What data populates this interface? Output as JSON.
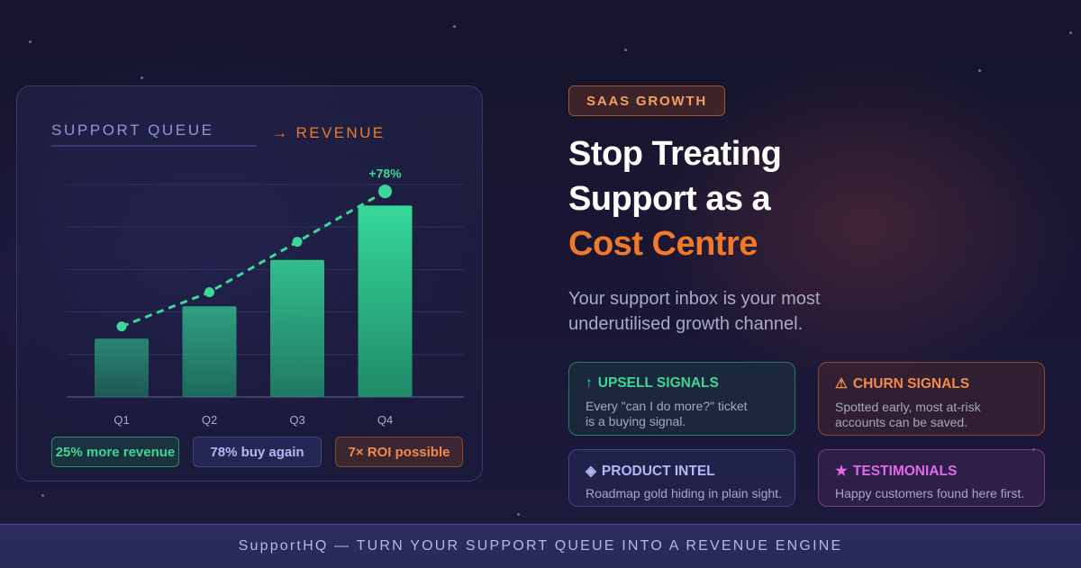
{
  "chart_card": {
    "title": "SUPPORT QUEUE",
    "arrow_label": "→ REVENUE",
    "pills": [
      "25% more revenue",
      "78% buy again",
      "7× ROI possible"
    ]
  },
  "chart_data": {
    "type": "bar",
    "categories": [
      "Q1",
      "Q2",
      "Q3",
      "Q4"
    ],
    "values": [
      29,
      45,
      68,
      95
    ],
    "trend_line": [
      35,
      52,
      77,
      102
    ],
    "annotations": [
      {
        "category": "Q4",
        "text": "+78%"
      }
    ],
    "ylim": [
      0,
      105
    ],
    "grid": true,
    "colors": {
      "bar": "#2fcf90",
      "line": "#3dd79a"
    }
  },
  "badge": "SAAS GROWTH",
  "headline": {
    "line1": "Stop Treating",
    "line2": "Support as a",
    "accent": "Cost Centre"
  },
  "subtitle": {
    "line1": "Your support inbox is your most",
    "line2": "underutilised growth channel."
  },
  "features": {
    "upsell": {
      "icon": "↑",
      "title": "UPSELL SIGNALS",
      "line1": "Every \"can I do more?\" ticket",
      "line2": "is a buying signal."
    },
    "churn": {
      "icon": "⚠",
      "title": "CHURN SIGNALS",
      "line1": "Spotted early, most at-risk",
      "line2": "accounts can be saved."
    },
    "intel": {
      "icon": "◈",
      "title": "PRODUCT INTEL",
      "line1": "Roadmap gold hiding in plain sight."
    },
    "testimonials": {
      "icon": "★",
      "title": "TESTIMONIALS",
      "line1": "Happy customers found here first."
    }
  },
  "footer": "SupportHQ — TURN YOUR SUPPORT QUEUE INTO A REVENUE ENGINE",
  "colors": {
    "accent_orange": "#f07a2a",
    "accent_green": "#3cd796",
    "background": "#1a1736"
  }
}
